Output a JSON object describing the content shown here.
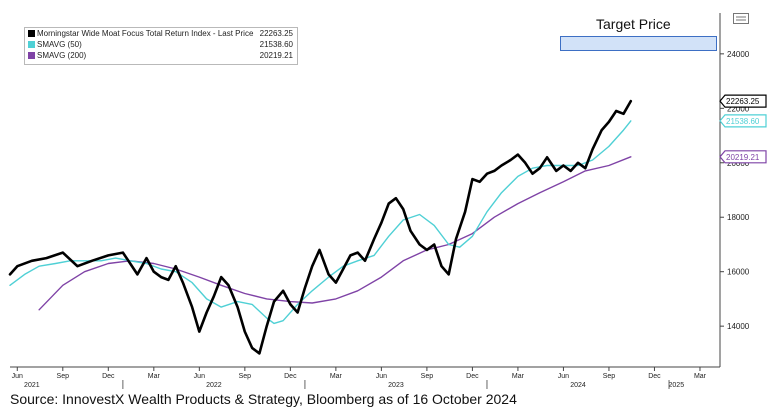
{
  "chart_data": {
    "type": "line",
    "title": "",
    "xlabel": "",
    "ylabel": "",
    "ylim": [
      12500,
      25500
    ],
    "y_ticks": [
      14000,
      16000,
      18000,
      20000,
      22000,
      24000
    ],
    "x_range": [
      2021.38,
      2025.28
    ],
    "x_ticks": [
      {
        "t": 2021.42,
        "label": "Jun"
      },
      {
        "t": 2021.67,
        "label": "Sep"
      },
      {
        "t": 2021.92,
        "label": "Dec"
      },
      {
        "t": 2022.17,
        "label": "Mar"
      },
      {
        "t": 2022.42,
        "label": "Jun"
      },
      {
        "t": 2022.67,
        "label": "Sep"
      },
      {
        "t": 2022.92,
        "label": "Dec"
      },
      {
        "t": 2023.17,
        "label": "Mar"
      },
      {
        "t": 2023.42,
        "label": "Jun"
      },
      {
        "t": 2023.67,
        "label": "Sep"
      },
      {
        "t": 2023.92,
        "label": "Dec"
      },
      {
        "t": 2024.17,
        "label": "Mar"
      },
      {
        "t": 2024.42,
        "label": "Jun"
      },
      {
        "t": 2024.67,
        "label": "Sep"
      },
      {
        "t": 2024.92,
        "label": "Dec"
      },
      {
        "t": 2025.17,
        "label": "Mar"
      }
    ],
    "year_labels": [
      {
        "t": 2021.5,
        "label": "2021"
      },
      {
        "t": 2022.5,
        "label": "2022"
      },
      {
        "t": 2023.5,
        "label": "2023"
      },
      {
        "t": 2024.5,
        "label": "2024"
      },
      {
        "t": 2025.04,
        "label": "2025"
      }
    ],
    "series": [
      {
        "name": "Morningstar Wide Moat Focus Total Return Index - Last Price",
        "last": "22263.25",
        "tag_label": "22263.25",
        "color": "#000000",
        "points": [
          [
            2021.38,
            15900
          ],
          [
            2021.42,
            16200
          ],
          [
            2021.5,
            16400
          ],
          [
            2021.58,
            16500
          ],
          [
            2021.67,
            16700
          ],
          [
            2021.75,
            16200
          ],
          [
            2021.83,
            16400
          ],
          [
            2021.92,
            16600
          ],
          [
            2022.0,
            16700
          ],
          [
            2022.04,
            16300
          ],
          [
            2022.08,
            15900
          ],
          [
            2022.13,
            16500
          ],
          [
            2022.17,
            16000
          ],
          [
            2022.21,
            15800
          ],
          [
            2022.25,
            15700
          ],
          [
            2022.29,
            16200
          ],
          [
            2022.33,
            15600
          ],
          [
            2022.38,
            14700
          ],
          [
            2022.42,
            13800
          ],
          [
            2022.46,
            14500
          ],
          [
            2022.5,
            15100
          ],
          [
            2022.54,
            15800
          ],
          [
            2022.58,
            15500
          ],
          [
            2022.63,
            14700
          ],
          [
            2022.67,
            13800
          ],
          [
            2022.71,
            13200
          ],
          [
            2022.75,
            13000
          ],
          [
            2022.79,
            14000
          ],
          [
            2022.83,
            14900
          ],
          [
            2022.88,
            15300
          ],
          [
            2022.92,
            14800
          ],
          [
            2022.96,
            14500
          ],
          [
            2023.0,
            15400
          ],
          [
            2023.04,
            16200
          ],
          [
            2023.08,
            16800
          ],
          [
            2023.13,
            15900
          ],
          [
            2023.17,
            15600
          ],
          [
            2023.21,
            16100
          ],
          [
            2023.25,
            16600
          ],
          [
            2023.29,
            16700
          ],
          [
            2023.33,
            16400
          ],
          [
            2023.38,
            17200
          ],
          [
            2023.42,
            17800
          ],
          [
            2023.46,
            18500
          ],
          [
            2023.5,
            18700
          ],
          [
            2023.54,
            18300
          ],
          [
            2023.58,
            17500
          ],
          [
            2023.63,
            17000
          ],
          [
            2023.67,
            16800
          ],
          [
            2023.71,
            17000
          ],
          [
            2023.75,
            16200
          ],
          [
            2023.79,
            15900
          ],
          [
            2023.83,
            17200
          ],
          [
            2023.88,
            18200
          ],
          [
            2023.92,
            19400
          ],
          [
            2023.96,
            19300
          ],
          [
            2024.0,
            19600
          ],
          [
            2024.04,
            19700
          ],
          [
            2024.08,
            19900
          ],
          [
            2024.13,
            20100
          ],
          [
            2024.17,
            20300
          ],
          [
            2024.21,
            20000
          ],
          [
            2024.25,
            19600
          ],
          [
            2024.29,
            19800
          ],
          [
            2024.33,
            20200
          ],
          [
            2024.38,
            19700
          ],
          [
            2024.42,
            19900
          ],
          [
            2024.46,
            19700
          ],
          [
            2024.5,
            20000
          ],
          [
            2024.54,
            19800
          ],
          [
            2024.58,
            20500
          ],
          [
            2024.63,
            21200
          ],
          [
            2024.67,
            21500
          ],
          [
            2024.71,
            21900
          ],
          [
            2024.75,
            21800
          ],
          [
            2024.79,
            22263
          ]
        ]
      },
      {
        "name": "SMAVG (50)",
        "last": "21538.60",
        "tag_label": "21538.60",
        "color": "#4fd0d5",
        "points": [
          [
            2021.38,
            15500
          ],
          [
            2021.46,
            15900
          ],
          [
            2021.54,
            16200
          ],
          [
            2021.63,
            16300
          ],
          [
            2021.71,
            16400
          ],
          [
            2021.79,
            16400
          ],
          [
            2021.88,
            16400
          ],
          [
            2021.96,
            16500
          ],
          [
            2022.04,
            16400
          ],
          [
            2022.13,
            16300
          ],
          [
            2022.21,
            16100
          ],
          [
            2022.29,
            16000
          ],
          [
            2022.38,
            15600
          ],
          [
            2022.46,
            15000
          ],
          [
            2022.54,
            14700
          ],
          [
            2022.63,
            14900
          ],
          [
            2022.71,
            14800
          ],
          [
            2022.79,
            14300
          ],
          [
            2022.83,
            14100
          ],
          [
            2022.88,
            14200
          ],
          [
            2022.96,
            14800
          ],
          [
            2023.04,
            15300
          ],
          [
            2023.13,
            15800
          ],
          [
            2023.21,
            16200
          ],
          [
            2023.29,
            16400
          ],
          [
            2023.38,
            16600
          ],
          [
            2023.46,
            17300
          ],
          [
            2023.54,
            17900
          ],
          [
            2023.63,
            18100
          ],
          [
            2023.71,
            17700
          ],
          [
            2023.79,
            17000
          ],
          [
            2023.85,
            16900
          ],
          [
            2023.92,
            17300
          ],
          [
            2024.0,
            18200
          ],
          [
            2024.08,
            18900
          ],
          [
            2024.17,
            19500
          ],
          [
            2024.25,
            19800
          ],
          [
            2024.33,
            19900
          ],
          [
            2024.42,
            19900
          ],
          [
            2024.5,
            19900
          ],
          [
            2024.58,
            20100
          ],
          [
            2024.67,
            20600
          ],
          [
            2024.75,
            21200
          ],
          [
            2024.79,
            21539
          ]
        ]
      },
      {
        "name": "SMAVG (200)",
        "last": "20219.21",
        "tag_label": "20219.21",
        "color": "#7f43a6",
        "points": [
          [
            2021.54,
            14600
          ],
          [
            2021.67,
            15500
          ],
          [
            2021.79,
            16000
          ],
          [
            2021.92,
            16300
          ],
          [
            2022.04,
            16400
          ],
          [
            2022.17,
            16300
          ],
          [
            2022.29,
            16100
          ],
          [
            2022.42,
            15800
          ],
          [
            2022.54,
            15500
          ],
          [
            2022.67,
            15200
          ],
          [
            2022.79,
            15000
          ],
          [
            2022.92,
            14900
          ],
          [
            2023.04,
            14850
          ],
          [
            2023.17,
            15000
          ],
          [
            2023.29,
            15300
          ],
          [
            2023.42,
            15800
          ],
          [
            2023.54,
            16400
          ],
          [
            2023.67,
            16800
          ],
          [
            2023.79,
            17000
          ],
          [
            2023.92,
            17400
          ],
          [
            2024.04,
            18000
          ],
          [
            2024.17,
            18500
          ],
          [
            2024.29,
            18900
          ],
          [
            2024.42,
            19300
          ],
          [
            2024.54,
            19700
          ],
          [
            2024.67,
            19900
          ],
          [
            2024.79,
            20219
          ]
        ]
      }
    ]
  },
  "legend": {
    "items": [
      {
        "label": "Morningstar Wide Moat Focus Total Return Index - Last Price",
        "value": "22263.25",
        "color": "#000000"
      },
      {
        "label": "SMAVG (50)",
        "value": "21538.60",
        "color": "#4fd0d5"
      },
      {
        "label": "SMAVG (200)",
        "value": "20219.21",
        "color": "#7f43a6"
      }
    ]
  },
  "target_price": {
    "label": "Target Price",
    "fill": "#d2e2f8",
    "border": "#3d6fc4"
  },
  "source": "Source: InnovestX Wealth Products & Strategy, Bloomberg as of 16 October 2024"
}
